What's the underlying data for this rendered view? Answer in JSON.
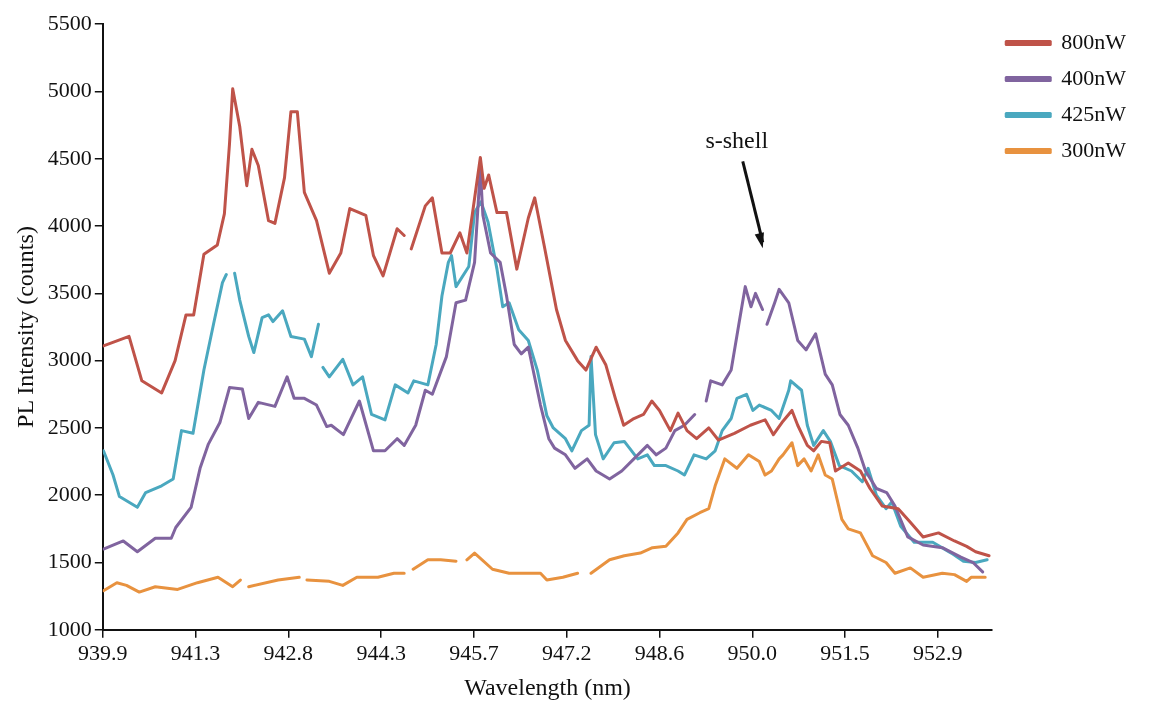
{
  "chart_data": {
    "type": "line",
    "xlabel": "Wavelength (nm)",
    "ylabel": "PL Intensity (counts)",
    "xlim": [
      939.9,
      953.8
    ],
    "ylim": [
      1000,
      5500
    ],
    "xticks": [
      {
        "value": 939.9,
        "label": "939.9"
      },
      {
        "value": 941.35,
        "label": "941.3"
      },
      {
        "value": 942.8,
        "label": "942.8"
      },
      {
        "value": 944.25,
        "label": "944.3"
      },
      {
        "value": 945.7,
        "label": "945.7"
      },
      {
        "value": 947.15,
        "label": "947.2"
      },
      {
        "value": 948.6,
        "label": "948.6"
      },
      {
        "value": 950.05,
        "label": "950.0"
      },
      {
        "value": 951.5,
        "label": "951.5"
      },
      {
        "value": 952.95,
        "label": "952.9"
      }
    ],
    "yticks": [
      1000,
      1500,
      2000,
      2500,
      3000,
      3500,
      4000,
      4500,
      5000,
      5500
    ],
    "grid": false,
    "legend": "top right",
    "marker": "none",
    "line_style": "solid",
    "annotations": [
      "s-shell"
    ],
    "series": [
      {
        "name": "800nW",
        "color": "#bf5349",
        "x": [
          939.91,
          940.31,
          940.51,
          940.82,
          941.03,
          941.2,
          941.32,
          941.48,
          941.69,
          941.8,
          941.88,
          941.93,
          942.04,
          942.15,
          942.23,
          942.33,
          942.49,
          942.59,
          942.74,
          942.84,
          942.94,
          943.05,
          943.24,
          943.44,
          943.62,
          943.76,
          944.01,
          944.13,
          944.28,
          944.5,
          944.61,
          944.66,
          944.72,
          944.94,
          945.05,
          945.2,
          945.33,
          945.48,
          945.59,
          945.8,
          945.86,
          945.93,
          946.06,
          946.21,
          946.37,
          946.55,
          946.65,
          946.8,
          946.99,
          947.13,
          947.32,
          947.45,
          947.61,
          947.76,
          947.91,
          948.04,
          948.2,
          948.35,
          948.48,
          948.6,
          948.77,
          948.89,
          949.03,
          949.18,
          949.37,
          949.52,
          949.77,
          950.02,
          950.25,
          950.38,
          950.53,
          950.67,
          950.76,
          950.91,
          951.01,
          951.13,
          951.26,
          951.35,
          951.55,
          951.74,
          951.89,
          952.08,
          952.33,
          952.52,
          952.72,
          952.96,
          953.21,
          953.4,
          953.54,
          953.75
        ],
        "values": [
          3110,
          3180,
          2850,
          2760,
          3000,
          3340,
          3340,
          3790,
          3860,
          4090,
          4610,
          5020,
          4740,
          4300,
          4570,
          4450,
          4040,
          4020,
          4360,
          4850,
          4850,
          4250,
          4040,
          3650,
          3800,
          4130,
          4080,
          3780,
          3630,
          3980,
          3930,
          null,
          3830,
          4150,
          4210,
          3800,
          3800,
          3950,
          3800,
          4510,
          4280,
          4380,
          4100,
          4100,
          3680,
          4060,
          4210,
          3850,
          3380,
          3150,
          3000,
          2930,
          3100,
          2970,
          2720,
          2520,
          2570,
          2600,
          2700,
          2630,
          2480,
          2610,
          2480,
          2420,
          2500,
          2410,
          2460,
          2520,
          2560,
          2450,
          2550,
          2630,
          2520,
          2370,
          2330,
          2400,
          2390,
          2180,
          2240,
          2180,
          2050,
          1920,
          1900,
          1800,
          1690,
          1720,
          1660,
          1620,
          1580,
          1550
        ]
      },
      {
        "name": "400nW",
        "color": "#80649f",
        "x": [
          939.91,
          940.22,
          940.44,
          940.72,
          940.97,
          941.04,
          941.28,
          941.42,
          941.55,
          941.73,
          941.88,
          942.08,
          942.18,
          942.33,
          942.59,
          942.78,
          942.89,
          943.05,
          943.24,
          943.4,
          943.47,
          943.66,
          943.91,
          944.13,
          944.31,
          944.5,
          944.61,
          944.79,
          944.94,
          945.05,
          945.27,
          945.42,
          945.57,
          945.71,
          945.8,
          945.84,
          945.96,
          946.11,
          946.21,
          946.33,
          946.44,
          946.55,
          946.74,
          946.87,
          946.96,
          947.13,
          947.28,
          947.47,
          947.61,
          947.82,
          948.01,
          948.2,
          948.41,
          948.55,
          948.7,
          948.84,
          948.99,
          949.15,
          949.24,
          949.33,
          949.4,
          949.58,
          949.72,
          949.84,
          949.94,
          950.03,
          950.1,
          950.21,
          950.25,
          950.28,
          950.4,
          950.47,
          950.62,
          950.76,
          950.89,
          951.04,
          951.19,
          951.3,
          951.42,
          951.55,
          951.7,
          951.82,
          951.99,
          952.15,
          952.28,
          952.48,
          952.72,
          953.02,
          953.31,
          953.5,
          953.65
        ],
        "values": [
          1600,
          1660,
          1580,
          1680,
          1680,
          1760,
          1910,
          2200,
          2380,
          2540,
          2800,
          2790,
          2570,
          2690,
          2660,
          2880,
          2720,
          2720,
          2670,
          2510,
          2520,
          2450,
          2700,
          2330,
          2330,
          2420,
          2370,
          2520,
          2780,
          2750,
          3030,
          3430,
          3450,
          3730,
          4430,
          4080,
          3800,
          3730,
          3480,
          3120,
          3050,
          3100,
          2670,
          2420,
          2350,
          2300,
          2200,
          2270,
          2180,
          2120,
          2180,
          2270,
          2370,
          2300,
          2350,
          2480,
          2520,
          2600,
          null,
          2700,
          2850,
          2820,
          2930,
          3270,
          3550,
          3400,
          3500,
          3380,
          null,
          3270,
          3430,
          3530,
          3430,
          3150,
          3080,
          3200,
          2900,
          2820,
          2600,
          2520,
          2350,
          2180,
          2050,
          2020,
          1920,
          1690,
          1630,
          1610,
          1540,
          1500,
          1430
        ]
      },
      {
        "name": "425nW",
        "color": "#4aa8bf",
        "x": [
          939.91,
          940.06,
          940.16,
          940.44,
          940.57,
          940.82,
          941.0,
          941.13,
          941.31,
          941.48,
          941.63,
          941.77,
          941.83,
          941.89,
          941.96,
          942.04,
          942.18,
          942.26,
          942.39,
          942.49,
          942.56,
          942.71,
          942.84,
          943.05,
          943.16,
          943.27,
          943.29,
          943.34,
          943.44,
          943.65,
          943.81,
          943.96,
          944.1,
          944.31,
          944.47,
          944.67,
          944.76,
          944.98,
          945.11,
          945.2,
          945.3,
          945.35,
          945.42,
          945.62,
          945.71,
          945.81,
          945.92,
          946.06,
          946.15,
          946.25,
          946.4,
          946.55,
          946.69,
          946.84,
          946.94,
          947.13,
          947.23,
          947.38,
          947.5,
          947.53,
          947.6,
          947.72,
          947.89,
          948.05,
          948.26,
          948.41,
          948.52,
          948.7,
          948.89,
          948.99,
          949.14,
          949.33,
          949.47,
          949.58,
          949.72,
          949.81,
          949.96,
          950.06,
          950.16,
          950.35,
          950.47,
          950.62,
          950.65,
          950.82,
          950.91,
          951.01,
          951.16,
          951.27,
          951.41,
          951.6,
          951.77,
          951.86,
          951.99,
          952.14,
          952.23,
          952.37,
          952.58,
          952.87,
          953.16,
          953.35,
          953.54,
          953.72
        ],
        "values": [
          2330,
          2150,
          1990,
          1910,
          2020,
          2070,
          2120,
          2480,
          2460,
          2930,
          3270,
          3580,
          3640,
          null,
          3650,
          3450,
          3180,
          3060,
          3320,
          3340,
          3290,
          3370,
          3180,
          3160,
          3030,
          3270,
          null,
          2950,
          2880,
          3010,
          2820,
          2880,
          2600,
          2560,
          2820,
          2760,
          2850,
          2820,
          3120,
          3480,
          3730,
          3780,
          3550,
          3700,
          4100,
          4180,
          4030,
          3680,
          3400,
          3430,
          3230,
          3150,
          2930,
          2590,
          2500,
          2420,
          2330,
          2480,
          2520,
          3030,
          2450,
          2270,
          2390,
          2400,
          2270,
          2300,
          2220,
          2220,
          2180,
          2150,
          2300,
          2270,
          2330,
          2480,
          2570,
          2720,
          2750,
          2630,
          2670,
          2630,
          2570,
          2780,
          2850,
          2780,
          2520,
          2370,
          2480,
          2400,
          2220,
          2180,
          2100,
          2200,
          2000,
          1900,
          1950,
          1770,
          1650,
          1650,
          1570,
          1510,
          1500,
          1520
        ]
      },
      {
        "name": "300nW",
        "color": "#e8923f",
        "x": [
          939.91,
          940.12,
          940.27,
          940.47,
          940.72,
          941.07,
          941.38,
          941.7,
          941.93,
          942.05,
          942.12,
          942.18,
          942.64,
          942.97,
          943.03,
          943.09,
          943.44,
          943.65,
          943.87,
          944.2,
          944.45,
          944.61,
          944.68,
          944.75,
          944.98,
          945.18,
          945.42,
          945.5,
          945.59,
          945.71,
          945.99,
          946.25,
          946.44,
          946.74,
          946.84,
          947.09,
          947.32,
          947.42,
          947.53,
          947.82,
          948.05,
          948.3,
          948.49,
          948.7,
          948.89,
          949.03,
          949.23,
          949.37,
          949.47,
          949.62,
          949.81,
          949.99,
          950.16,
          950.25,
          950.35,
          950.47,
          950.53,
          950.67,
          950.76,
          950.86,
          950.97,
          951.08,
          951.19,
          951.3,
          951.45,
          951.55,
          951.74,
          951.93,
          952.14,
          952.28,
          952.52,
          952.72,
          953.02,
          953.21,
          953.4,
          953.47,
          953.69
        ],
        "values": [
          1290,
          1350,
          1330,
          1280,
          1320,
          1300,
          1350,
          1390,
          1320,
          1370,
          null,
          1320,
          1370,
          1390,
          null,
          1370,
          1360,
          1330,
          1390,
          1390,
          1420,
          1420,
          null,
          1450,
          1520,
          1520,
          1510,
          null,
          1520,
          1570,
          1450,
          1420,
          1420,
          1420,
          1370,
          1390,
          1420,
          null,
          1420,
          1520,
          1550,
          1570,
          1610,
          1620,
          1720,
          1820,
          1870,
          1900,
          2070,
          2270,
          2200,
          2300,
          2250,
          2150,
          2180,
          2270,
          2300,
          2390,
          2220,
          2270,
          2180,
          2300,
          2150,
          2120,
          1820,
          1750,
          1720,
          1550,
          1500,
          1420,
          1460,
          1390,
          1420,
          1410,
          1360,
          1390,
          1390
        ]
      }
    ]
  }
}
